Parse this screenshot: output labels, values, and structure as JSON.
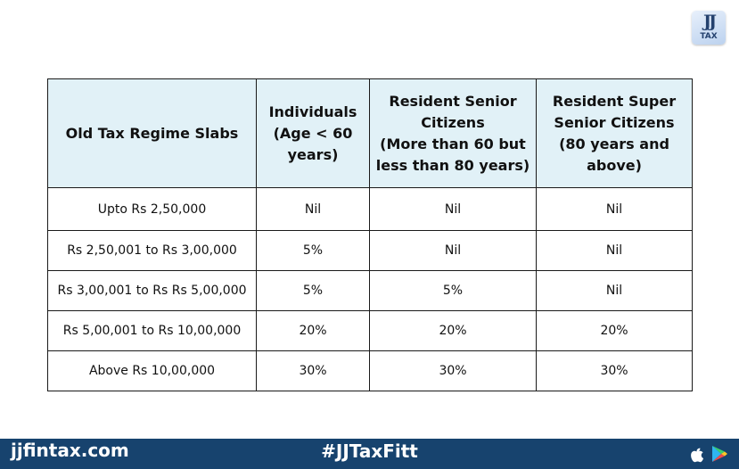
{
  "logo": {
    "mark": "JJ",
    "text": "TAX"
  },
  "table": {
    "headers": [
      "Old Tax Regime Slabs",
      "Individuals\n(Age < 60\nyears)",
      "Resident Senior\nCitizens\n(More than 60 but\nless than 80 years)",
      "Resident Super\nSenior Citizens\n(80 years and\nabove)"
    ],
    "rows": [
      [
        "Upto Rs 2,50,000",
        "Nil",
        "Nil",
        "Nil"
      ],
      [
        "Rs 2,50,001 to Rs 3,00,000",
        "5%",
        "Nil",
        "Nil"
      ],
      [
        "Rs 3,00,001 to Rs Rs 5,00,000",
        "5%",
        "5%",
        "Nil"
      ],
      [
        "Rs 5,00,001 to Rs 10,00,000",
        "20%",
        "20%",
        "20%"
      ],
      [
        "Above Rs 10,00,000",
        "30%",
        "30%",
        "30%"
      ]
    ]
  },
  "footer": {
    "website": "jjfintax.com",
    "hashtag": "#JJTaxFitt",
    "icons": [
      "apple-icon",
      "play-store-icon"
    ],
    "background_color": "#17436e"
  }
}
